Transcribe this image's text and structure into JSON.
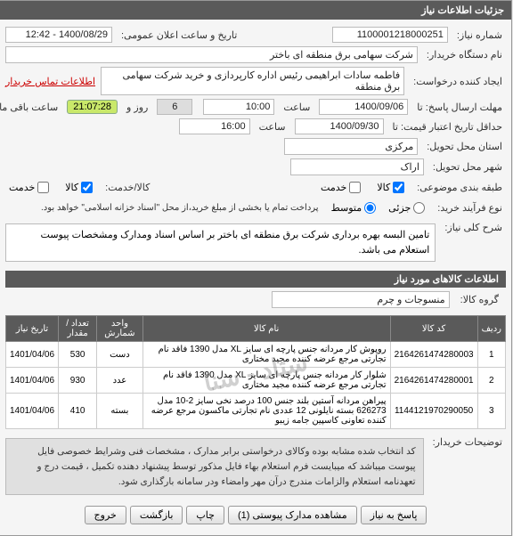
{
  "panel_title": "جزئیات اطلاعات نیاز",
  "labels": {
    "need_number": "شماره نیاز:",
    "announce_time": "تاریخ و ساعت اعلان عمومی:",
    "buyer_device": "نام دستگاه خریدار:",
    "request_creator": "ایجاد کننده درخواست:",
    "contact_link": "اطلاعات تماس خریدار",
    "reply_deadline": "مهلت ارسال پاسخ: تا",
    "time": "ساعت",
    "day_and": "روز و",
    "remaining": "ساعت باقی مانده",
    "price_validity": "حداقل تاریخ اعتبار قیمت: تا",
    "delivery_province": "استان محل تحویل:",
    "delivery_city": "شهر محل تحویل:",
    "budget_class": "طبقه بندی موضوعی:",
    "goods_service": "کالا/خدمت:",
    "purchase_type": "نوع فرآیند خرید:",
    "purchase_note": "پرداخت تمام یا بخشی از مبلغ خرید،از محل \"اسناد خزانه اسلامی\" خواهد بود.",
    "need_desc": "شرح کلی نیاز:",
    "goods_group": "گروه کالا:",
    "explain_label": "توضیحات خریدار:"
  },
  "fields": {
    "need_number": "1100001218000251",
    "announce_time": "1400/08/29 - 12:42",
    "buyer_device": "شرکت سهامی برق منطقه ای باختر",
    "request_creator": "فاطمه سادات ابراهیمی رئیس اداره کارپردازی و خرید شرکت سهامی برق منطقه",
    "reply_date": "1400/09/06",
    "reply_time": "10:00",
    "remaining_days": "6",
    "remaining_time": "21:07:28",
    "price_date": "1400/09/30",
    "price_time": "16:00",
    "province": "مرکزی",
    "city": "اراک",
    "goods_group": "منسوجات و چرم"
  },
  "checkboxes": {
    "goods": "کالا",
    "service": "خدمت"
  },
  "radios": {
    "partial": "جزئی",
    "medium": "متوسط"
  },
  "desc_text": "تامین البسه بهره برداری شرکت برق منطقه ای باختر بر اساس اسناد ومدارک ومشخصات پیوست استعلام می باشد.",
  "goods_section_title": "اطلاعات کالاهای مورد نیاز",
  "watermark": "ستاد - سنا",
  "table": {
    "columns": [
      "ردیف",
      "کد کالا",
      "نام کالا",
      "واحد شمارش",
      "تعداد / مقدار",
      "تاریخ نیاز"
    ],
    "rows": [
      [
        "1",
        "2164261474280003",
        "روپوش کار مردانه جنس پارچه ای سایز XL مدل 1390 فاقد نام تجارتی مرجع عرضه کننده مجید مختاری",
        "دست",
        "530",
        "1401/04/06"
      ],
      [
        "2",
        "2164261474280001",
        "شلوار کار مردانه جنس پارچه ای سایز XL مدل 1390 فاقد نام تجارتی مرجع عرضه کننده مجید مختاری",
        "عدد",
        "930",
        "1401/04/06"
      ],
      [
        "3",
        "1144121970290050",
        "پیراهن مردانه آستین بلند جنس 100 درصد نخی سایز 2-10 مدل 626273 بسته نایلونی 12 عددی نام تجارتی ماکسون مرجع عرضه کننده تعاونی کاسپین جامه زیبو",
        "بسته",
        "410",
        "1401/04/06"
      ]
    ]
  },
  "explain_text": "کد انتخاب شده مشابه بوده وکالای درخواستی برابر مدارک ، مشخصات فنی وشرایط خصوصی فایل پیوست میباشد که میبایست فرم استعلام بهاء فایل مذکور توسط پیشنهاد دهنده تکمیل ، قیمت درج و تعهدنامه استعلام والزامات  مندرج درآن مهر وامضاء ودر سامانه بارگذاری شود.",
  "buttons": {
    "respond": "پاسخ به نیاز",
    "view_docs": "مشاهده مدارک پیوستی (1)",
    "print": "چاپ",
    "back": "بازگشت",
    "exit": "خروج"
  }
}
